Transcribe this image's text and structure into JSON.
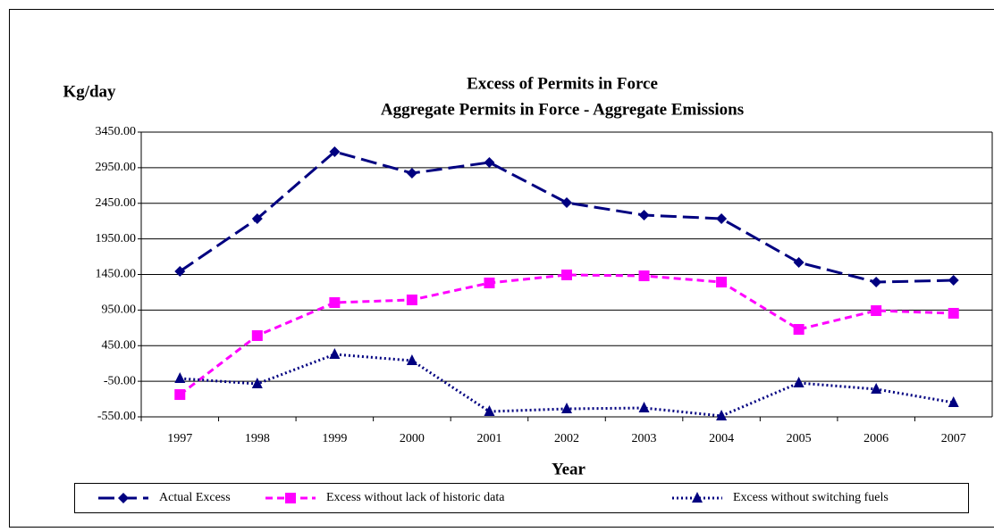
{
  "chart_data": {
    "type": "line",
    "title": "Excess of Permits in Force",
    "subtitle": "Aggregate Permits in Force - Aggregate Emissions",
    "y_label": "Kg/day",
    "x_label": "Year",
    "categories": [
      "1997",
      "1998",
      "1999",
      "2000",
      "2001",
      "2002",
      "2003",
      "2004",
      "2005",
      "2006",
      "2007"
    ],
    "series": [
      {
        "name": "Actual Excess",
        "color": "#000080",
        "dash": "long",
        "marker": "diamond",
        "values": [
          1494,
          2234,
          3174,
          2873,
          3024,
          2459,
          2284,
          2234,
          1619,
          1343,
          1368
        ]
      },
      {
        "name": "Excess without lack of historic data",
        "color": "#ff00ff",
        "dash": "short",
        "marker": "square",
        "values": [
          -237,
          591,
          1055,
          1093,
          1331,
          1444,
          1431,
          1343,
          679,
          942,
          905
        ]
      },
      {
        "name": "Excess without switching fuels",
        "color": "#000080",
        "dash": "dot",
        "marker": "triangle",
        "values": [
          -11,
          -86,
          328,
          240,
          -475,
          -437,
          -425,
          -537,
          -74,
          -161,
          -349
        ]
      }
    ],
    "ylim": [
      -550,
      3450
    ],
    "yticks": [
      {
        "value": -550,
        "label": "-550.00"
      },
      {
        "value": -50,
        "label": "-50.00"
      },
      {
        "value": 450,
        "label": "450.00"
      },
      {
        "value": 950,
        "label": "950.00"
      },
      {
        "value": 1450,
        "label": "1450.00"
      },
      {
        "value": 1950,
        "label": "1950.00"
      },
      {
        "value": 2450,
        "label": "2450.00"
      },
      {
        "value": 2950,
        "label": "2950.00"
      },
      {
        "value": 3450,
        "label": "3450.00"
      }
    ],
    "grid": true,
    "legend": "bottom"
  }
}
